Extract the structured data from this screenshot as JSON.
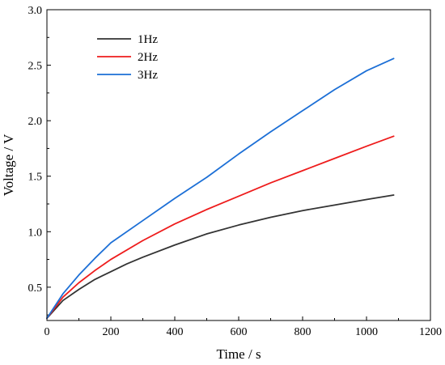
{
  "chart_data": {
    "type": "line",
    "title": "",
    "xlabel": "Time / s",
    "ylabel": "Voltage / V",
    "xlim": [
      0,
      1200
    ],
    "ylim": [
      0.2,
      3.0
    ],
    "x_ticks": [
      0,
      200,
      400,
      600,
      800,
      1000,
      1200
    ],
    "y_ticks": [
      0.5,
      1.0,
      1.5,
      2.0,
      2.5,
      3.0
    ],
    "x_tick_labels": [
      "0",
      "200",
      "400",
      "600",
      "800",
      "1000",
      "1200"
    ],
    "y_tick_labels": [
      "0.5",
      "1.0",
      "1.5",
      "2.0",
      "2.5",
      "3.0"
    ],
    "grid": false,
    "legend": "top-left",
    "series": [
      {
        "name": "1Hz",
        "color": "#333333",
        "x": [
          0,
          50,
          100,
          150,
          200,
          250,
          300,
          400,
          500,
          600,
          700,
          800,
          900,
          1000,
          1085
        ],
        "y": [
          0.22,
          0.38,
          0.48,
          0.57,
          0.64,
          0.71,
          0.77,
          0.88,
          0.98,
          1.06,
          1.13,
          1.19,
          1.24,
          1.29,
          1.33
        ]
      },
      {
        "name": "2Hz",
        "color": "#ee1c1c",
        "x": [
          0,
          50,
          100,
          150,
          200,
          300,
          400,
          500,
          600,
          700,
          800,
          900,
          1000,
          1085
        ],
        "y": [
          0.22,
          0.41,
          0.54,
          0.65,
          0.75,
          0.92,
          1.07,
          1.2,
          1.32,
          1.44,
          1.55,
          1.66,
          1.77,
          1.86
        ]
      },
      {
        "name": "3Hz",
        "color": "#1c6fd6",
        "x": [
          0,
          50,
          100,
          150,
          200,
          300,
          400,
          500,
          600,
          700,
          800,
          900,
          1000,
          1085
        ],
        "y": [
          0.22,
          0.44,
          0.61,
          0.76,
          0.9,
          1.1,
          1.3,
          1.49,
          1.7,
          1.9,
          2.09,
          2.28,
          2.45,
          2.56
        ]
      }
    ]
  }
}
